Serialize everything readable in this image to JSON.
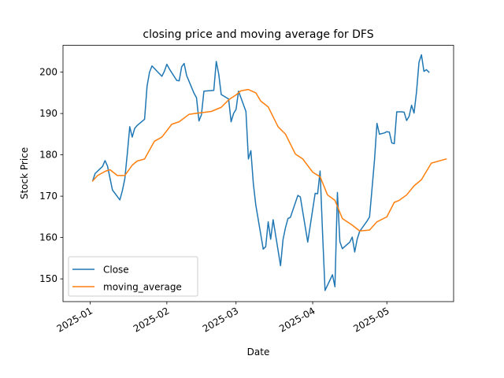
{
  "chart_data": {
    "type": "line",
    "title": "closing price and moving average for DFS",
    "xlabel": "Date",
    "ylabel": "Stock Price",
    "xlim": [
      "2024-12-21",
      "2025-05-28"
    ],
    "ylim": [
      144.5,
      206.5
    ],
    "x_ticks": [
      "2025-01",
      "2025-02",
      "2025-03",
      "2025-04",
      "2025-05"
    ],
    "y_ticks": [
      150,
      160,
      170,
      180,
      190,
      200
    ],
    "grid": false,
    "legend_position": "lower-left",
    "series": [
      {
        "name": "Close",
        "color": "#1f77b4",
        "points": [
          [
            "2025-01-02",
            173.7
          ],
          [
            "2025-01-03",
            175.5
          ],
          [
            "2025-01-06",
            177.2
          ],
          [
            "2025-01-07",
            178.6
          ],
          [
            "2025-01-08",
            177.3
          ],
          [
            "2025-01-10",
            171.5
          ],
          [
            "2025-01-13",
            169.1
          ],
          [
            "2025-01-14",
            171.3
          ],
          [
            "2025-01-15",
            174.2
          ],
          [
            "2025-01-16",
            180.2
          ],
          [
            "2025-01-17",
            186.8
          ],
          [
            "2025-01-18",
            184.3
          ],
          [
            "2025-01-19",
            186.4
          ],
          [
            "2025-01-20",
            187.1
          ],
          [
            "2025-01-23",
            188.6
          ],
          [
            "2025-01-24",
            196.6
          ],
          [
            "2025-01-25",
            200.0
          ],
          [
            "2025-01-26",
            201.5
          ],
          [
            "2025-01-30",
            199.0
          ],
          [
            "2025-01-31",
            200.2
          ],
          [
            "2025-02-01",
            201.9
          ],
          [
            "2025-02-02",
            200.8
          ],
          [
            "2025-02-05",
            198.0
          ],
          [
            "2025-02-06",
            197.9
          ],
          [
            "2025-02-07",
            201.3
          ],
          [
            "2025-02-08",
            202.1
          ],
          [
            "2025-02-09",
            199.2
          ],
          [
            "2025-02-12",
            194.9
          ],
          [
            "2025-02-13",
            193.8
          ],
          [
            "2025-02-14",
            188.2
          ],
          [
            "2025-02-15",
            189.7
          ],
          [
            "2025-02-16",
            195.4
          ],
          [
            "2025-02-20",
            195.6
          ],
          [
            "2025-02-21",
            202.6
          ],
          [
            "2025-02-22",
            199.5
          ],
          [
            "2025-02-23",
            194.6
          ],
          [
            "2025-02-26",
            193.5
          ],
          [
            "2025-02-27",
            188.0
          ],
          [
            "2025-02-28",
            190.0
          ],
          [
            "2025-03-01",
            191.0
          ],
          [
            "2025-03-02",
            195.4
          ],
          [
            "2025-03-05",
            190.5
          ],
          [
            "2025-03-06",
            179.0
          ],
          [
            "2025-03-07",
            181.0
          ],
          [
            "2025-03-08",
            173.0
          ],
          [
            "2025-03-09",
            167.8
          ],
          [
            "2025-03-12",
            157.2
          ],
          [
            "2025-03-13",
            157.8
          ],
          [
            "2025-03-14",
            163.8
          ],
          [
            "2025-03-15",
            159.6
          ],
          [
            "2025-03-16",
            164.3
          ],
          [
            "2025-03-19",
            153.2
          ],
          [
            "2025-03-20",
            159.5
          ],
          [
            "2025-03-21",
            162.4
          ],
          [
            "2025-03-22",
            164.6
          ],
          [
            "2025-03-23",
            164.9
          ],
          [
            "2025-03-26",
            170.2
          ],
          [
            "2025-03-27",
            169.8
          ],
          [
            "2025-03-30",
            158.9
          ],
          [
            "2025-04-02",
            170.7
          ],
          [
            "2025-04-03",
            170.6
          ],
          [
            "2025-04-04",
            176.1
          ],
          [
            "2025-04-05",
            161.0
          ],
          [
            "2025-04-06",
            147.2
          ],
          [
            "2025-04-09",
            151.0
          ],
          [
            "2025-04-10",
            148.1
          ],
          [
            "2025-04-11",
            170.9
          ],
          [
            "2025-04-12",
            159.0
          ],
          [
            "2025-04-13",
            157.3
          ],
          [
            "2025-04-16",
            158.9
          ],
          [
            "2025-04-17",
            160.1
          ],
          [
            "2025-04-18",
            156.5
          ],
          [
            "2025-04-19",
            159.6
          ],
          [
            "2025-04-20",
            161.5
          ],
          [
            "2025-04-23",
            164.0
          ],
          [
            "2025-04-24",
            165.0
          ],
          [
            "2025-04-25",
            171.8
          ],
          [
            "2025-04-26",
            178.7
          ],
          [
            "2025-04-27",
            187.6
          ],
          [
            "2025-04-28",
            185.0
          ],
          [
            "2025-04-30",
            185.3
          ],
          [
            "2025-05-01",
            185.6
          ],
          [
            "2025-05-02",
            185.5
          ],
          [
            "2025-05-03",
            182.9
          ],
          [
            "2025-05-04",
            182.7
          ],
          [
            "2025-05-05",
            190.4
          ],
          [
            "2025-05-07",
            190.4
          ],
          [
            "2025-05-08",
            190.3
          ],
          [
            "2025-05-09",
            188.3
          ],
          [
            "2025-05-10",
            189.3
          ],
          [
            "2025-05-11",
            192.0
          ],
          [
            "2025-05-12",
            190.1
          ],
          [
            "2025-05-13",
            195.2
          ],
          [
            "2025-05-14",
            202.4
          ],
          [
            "2025-05-15",
            204.2
          ],
          [
            "2025-05-16",
            200.2
          ],
          [
            "2025-05-17",
            200.6
          ],
          [
            "2025-05-18",
            200.0
          ]
        ]
      },
      {
        "name": "moving_average",
        "color": "#ff7f0e",
        "points": [
          [
            "2025-01-02",
            173.7
          ],
          [
            "2025-01-04",
            175.0
          ],
          [
            "2025-01-07",
            176.0
          ],
          [
            "2025-01-09",
            176.4
          ],
          [
            "2025-01-12",
            175.0
          ],
          [
            "2025-01-15",
            175.0
          ],
          [
            "2025-01-18",
            177.5
          ],
          [
            "2025-01-20",
            178.5
          ],
          [
            "2025-01-23",
            179.0
          ],
          [
            "2025-01-27",
            183.3
          ],
          [
            "2025-01-30",
            184.3
          ],
          [
            "2025-02-03",
            187.4
          ],
          [
            "2025-02-06",
            188.0
          ],
          [
            "2025-02-10",
            189.8
          ],
          [
            "2025-02-15",
            190.2
          ],
          [
            "2025-02-19",
            190.5
          ],
          [
            "2025-02-23",
            191.5
          ],
          [
            "2025-02-26",
            193.3
          ],
          [
            "2025-03-01",
            194.5
          ],
          [
            "2025-03-03",
            195.5
          ],
          [
            "2025-03-06",
            195.8
          ],
          [
            "2025-03-09",
            195.0
          ],
          [
            "2025-03-11",
            193.0
          ],
          [
            "2025-03-14",
            191.6
          ],
          [
            "2025-03-18",
            186.8
          ],
          [
            "2025-03-21",
            185.0
          ],
          [
            "2025-03-25",
            180.2
          ],
          [
            "2025-03-28",
            179.0
          ],
          [
            "2025-04-01",
            175.8
          ],
          [
            "2025-04-04",
            174.7
          ],
          [
            "2025-04-07",
            170.3
          ],
          [
            "2025-04-10",
            169.0
          ],
          [
            "2025-04-13",
            164.6
          ],
          [
            "2025-04-17",
            163.0
          ],
          [
            "2025-04-20",
            161.6
          ],
          [
            "2025-04-24",
            161.8
          ],
          [
            "2025-04-27",
            163.8
          ],
          [
            "2025-05-01",
            165.0
          ],
          [
            "2025-05-04",
            168.5
          ],
          [
            "2025-05-06",
            169.0
          ],
          [
            "2025-05-09",
            170.3
          ],
          [
            "2025-05-12",
            172.5
          ],
          [
            "2025-05-15",
            174.0
          ],
          [
            "2025-05-19",
            178.0
          ],
          [
            "2025-05-25",
            179.0
          ]
        ]
      }
    ]
  }
}
